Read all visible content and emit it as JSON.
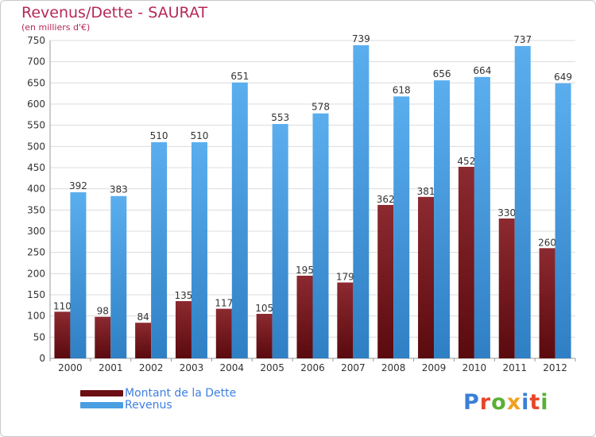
{
  "header": {
    "title": "Revenus/Dette - SAURAT",
    "subtitle": "(en milliers d'€)"
  },
  "chart_data": {
    "type": "bar",
    "title": "Revenus/Dette - SAURAT",
    "subtitle": "(en milliers d'€)",
    "categories": [
      "2000",
      "2001",
      "2002",
      "2003",
      "2004",
      "2005",
      "2006",
      "2007",
      "2008",
      "2009",
      "2010",
      "2011",
      "2012"
    ],
    "series": [
      {
        "name": "Montant de la Dette",
        "color": "#7a1a1f",
        "values": [
          110,
          98,
          84,
          135,
          117,
          105,
          195,
          179,
          362,
          381,
          452,
          330,
          260
        ]
      },
      {
        "name": "Revenus",
        "color": "#4a9fe3",
        "values": [
          392,
          383,
          510,
          510,
          651,
          553,
          578,
          739,
          618,
          656,
          664,
          737,
          649
        ]
      }
    ],
    "ylim": [
      0,
      750
    ],
    "ytick_step": 50,
    "grid": true,
    "legend_position": "bottom-left"
  },
  "legend": {
    "items": [
      {
        "label": "Montant de la Dette",
        "color": "#6b0f14"
      },
      {
        "label": "Revenus",
        "color": "#4a9fe3"
      }
    ]
  },
  "logo": {
    "text": "Proxiti",
    "colors": [
      "#3a7fd6",
      "#e8462a",
      "#5ab034",
      "#f0a020",
      "#3a7fd6",
      "#e8462a",
      "#5ab034"
    ]
  }
}
